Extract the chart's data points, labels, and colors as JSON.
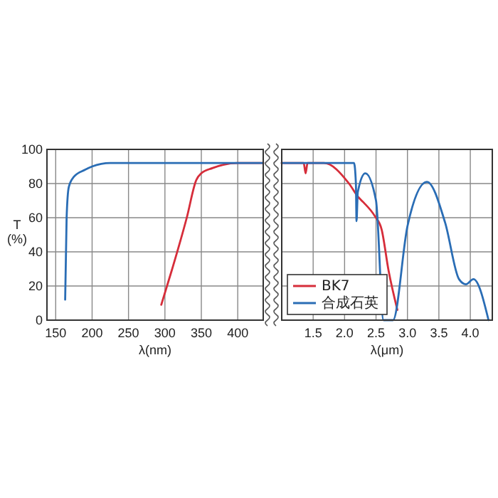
{
  "chart_data": [
    {
      "type": "line",
      "ylabel": "T\n(%)",
      "xlabel": "λ(nm)",
      "xlim": [
        138,
        435
      ],
      "xticks": [
        150,
        200,
        250,
        300,
        350,
        400
      ],
      "ylim": [
        0,
        100
      ],
      "yticks": [
        0,
        20,
        40,
        60,
        80,
        100
      ],
      "grid": true,
      "legend": false,
      "series": [
        {
          "color": "#d62d3a",
          "x": [
            295,
            310,
            330,
            343,
            350,
            365,
            380,
            400,
            435
          ],
          "values": [
            9,
            30,
            60,
            82,
            86,
            89,
            91,
            92,
            92
          ]
        },
        {
          "color": "#2a6db5",
          "x": [
            163,
            165,
            168,
            175,
            190,
            200,
            225,
            435
          ],
          "values": [
            12,
            60,
            78,
            84,
            88,
            90,
            92,
            92
          ]
        }
      ]
    },
    {
      "type": "line",
      "xlabel": "λ(μm)",
      "xlim": [
        1.0,
        4.35
      ],
      "xticks": [
        1.5,
        {
          "value": 2,
          "label": "2.0"
        },
        2.5,
        {
          "value": 3,
          "label": "3.0"
        },
        3.5,
        {
          "value": 4,
          "label": "4.0"
        }
      ],
      "ylim": [
        0,
        100
      ],
      "tick_labels": "x",
      "grid": true,
      "legend": "bottom left",
      "series": [
        {
          "name": "BK7",
          "color": "#d62d3a",
          "x": [
            1.0,
            1.35,
            1.38,
            1.41,
            1.67,
            2.07,
            2.22,
            2.3,
            2.48,
            2.59,
            2.7,
            2.84
          ],
          "values": [
            92,
            92,
            86,
            92,
            92,
            80,
            72,
            69,
            61,
            53,
            29,
            6
          ]
        },
        {
          "name": "合成石英",
          "color": "#2a6db5",
          "x": [
            1.0,
            2.15,
            2.18,
            2.19,
            2.21,
            2.33,
            2.5,
            2.62,
            2.77,
            3.0,
            3.31,
            3.6,
            3.82,
            3.93,
            4.05,
            4.29
          ],
          "values": [
            92,
            92,
            80,
            58,
            75,
            86,
            70,
            0,
            0,
            55,
            81,
            57,
            24,
            21,
            24,
            0
          ]
        }
      ]
    }
  ]
}
